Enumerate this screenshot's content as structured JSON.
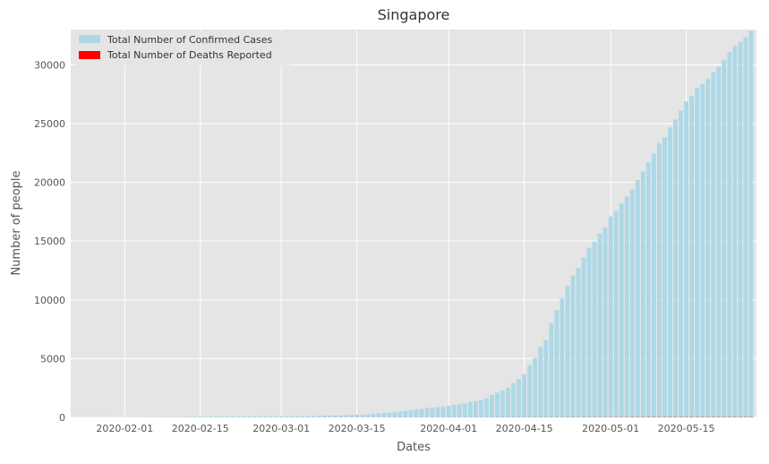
{
  "chart_data": {
    "type": "bar",
    "title": "Singapore",
    "xlabel": "Dates",
    "ylabel": "Number of people",
    "x_range": [
      "2020-01-22",
      "2020-05-28"
    ],
    "ylim": [
      0,
      33000
    ],
    "yticks": [
      0,
      5000,
      10000,
      15000,
      20000,
      25000,
      30000
    ],
    "xticks": [
      "2020-02-01",
      "2020-02-15",
      "2020-03-01",
      "2020-03-15",
      "2020-04-01",
      "2020-04-15",
      "2020-05-01",
      "2020-05-15"
    ],
    "grid": true,
    "legend_position": "top-left",
    "dates": [
      "2020-01-22",
      "2020-01-23",
      "2020-01-24",
      "2020-01-25",
      "2020-01-26",
      "2020-01-27",
      "2020-01-28",
      "2020-01-29",
      "2020-01-30",
      "2020-01-31",
      "2020-02-01",
      "2020-02-02",
      "2020-02-03",
      "2020-02-04",
      "2020-02-05",
      "2020-02-06",
      "2020-02-07",
      "2020-02-08",
      "2020-02-09",
      "2020-02-10",
      "2020-02-11",
      "2020-02-12",
      "2020-02-13",
      "2020-02-14",
      "2020-02-15",
      "2020-02-16",
      "2020-02-17",
      "2020-02-18",
      "2020-02-19",
      "2020-02-20",
      "2020-02-21",
      "2020-02-22",
      "2020-02-23",
      "2020-02-24",
      "2020-02-25",
      "2020-02-26",
      "2020-02-27",
      "2020-02-28",
      "2020-02-29",
      "2020-03-01",
      "2020-03-02",
      "2020-03-03",
      "2020-03-04",
      "2020-03-05",
      "2020-03-06",
      "2020-03-07",
      "2020-03-08",
      "2020-03-09",
      "2020-03-10",
      "2020-03-11",
      "2020-03-12",
      "2020-03-13",
      "2020-03-14",
      "2020-03-15",
      "2020-03-16",
      "2020-03-17",
      "2020-03-18",
      "2020-03-19",
      "2020-03-20",
      "2020-03-21",
      "2020-03-22",
      "2020-03-23",
      "2020-03-24",
      "2020-03-25",
      "2020-03-26",
      "2020-03-27",
      "2020-03-28",
      "2020-03-29",
      "2020-03-30",
      "2020-03-31",
      "2020-04-01",
      "2020-04-02",
      "2020-04-03",
      "2020-04-04",
      "2020-04-05",
      "2020-04-06",
      "2020-04-07",
      "2020-04-08",
      "2020-04-09",
      "2020-04-10",
      "2020-04-11",
      "2020-04-12",
      "2020-04-13",
      "2020-04-14",
      "2020-04-15",
      "2020-04-16",
      "2020-04-17",
      "2020-04-18",
      "2020-04-19",
      "2020-04-20",
      "2020-04-21",
      "2020-04-22",
      "2020-04-23",
      "2020-04-24",
      "2020-04-25",
      "2020-04-26",
      "2020-04-27",
      "2020-04-28",
      "2020-04-29",
      "2020-04-30",
      "2020-05-01",
      "2020-05-02",
      "2020-05-03",
      "2020-05-04",
      "2020-05-05",
      "2020-05-06",
      "2020-05-07",
      "2020-05-08",
      "2020-05-09",
      "2020-05-10",
      "2020-05-11",
      "2020-05-12",
      "2020-05-13",
      "2020-05-14",
      "2020-05-15",
      "2020-05-16",
      "2020-05-17",
      "2020-05-18",
      "2020-05-19",
      "2020-05-20",
      "2020-05-21",
      "2020-05-22",
      "2020-05-23",
      "2020-05-24",
      "2020-05-25",
      "2020-05-26",
      "2020-05-27"
    ],
    "series": [
      {
        "name": "Total Number of Confirmed Cases",
        "color": "#add8e6",
        "values": [
          0,
          1,
          3,
          3,
          4,
          5,
          7,
          7,
          10,
          13,
          16,
          18,
          18,
          24,
          28,
          28,
          30,
          33,
          40,
          45,
          47,
          50,
          58,
          67,
          72,
          75,
          77,
          81,
          84,
          84,
          85,
          85,
          89,
          89,
          91,
          93,
          93,
          96,
          98,
          102,
          106,
          108,
          110,
          112,
          117,
          130,
          138,
          150,
          160,
          178,
          187,
          200,
          212,
          226,
          243,
          266,
          313,
          345,
          385,
          432,
          455,
          509,
          558,
          631,
          683,
          732,
          802,
          844,
          879,
          926,
          1000,
          1049,
          1114,
          1189,
          1309,
          1375,
          1481,
          1623,
          1910,
          2108,
          2299,
          2532,
          2918,
          3252,
          3699,
          4427,
          5050,
          5992,
          6588,
          8014,
          9125,
          10141,
          11178,
          12075,
          12693,
          13624,
          14423,
          14951,
          15641,
          16169,
          17101,
          17548,
          18205,
          18778,
          19410,
          20198,
          20939,
          21707,
          22460,
          23336,
          23822,
          24671,
          25346,
          26098,
          26891,
          27356,
          28038,
          28343,
          28794,
          29364,
          29812,
          30426,
          31068,
          31616,
          31960,
          32343,
          32876
        ]
      },
      {
        "name": "Total Number of Deaths Reported",
        "color": "#ff0000",
        "values": [
          0,
          0,
          0,
          0,
          0,
          0,
          0,
          0,
          0,
          0,
          0,
          0,
          0,
          0,
          0,
          0,
          0,
          0,
          0,
          0,
          0,
          0,
          0,
          0,
          0,
          0,
          0,
          0,
          0,
          0,
          0,
          0,
          0,
          0,
          0,
          0,
          0,
          0,
          0,
          0,
          0,
          0,
          0,
          0,
          0,
          0,
          0,
          0,
          0,
          0,
          0,
          0,
          0,
          0,
          0,
          0,
          0,
          0,
          0,
          2,
          2,
          2,
          2,
          2,
          2,
          2,
          2,
          3,
          3,
          3,
          3,
          5,
          5,
          6,
          6,
          6,
          6,
          6,
          6,
          7,
          8,
          8,
          8,
          8,
          9,
          10,
          10,
          11,
          11,
          11,
          11,
          11,
          12,
          12,
          12,
          12,
          12,
          14,
          14,
          14,
          15,
          17,
          17,
          18,
          18,
          18,
          18,
          20,
          20,
          20,
          20,
          21,
          21,
          21,
          21,
          22,
          22,
          22,
          22,
          22,
          23,
          23,
          23,
          23,
          23,
          23,
          23
        ]
      }
    ]
  }
}
